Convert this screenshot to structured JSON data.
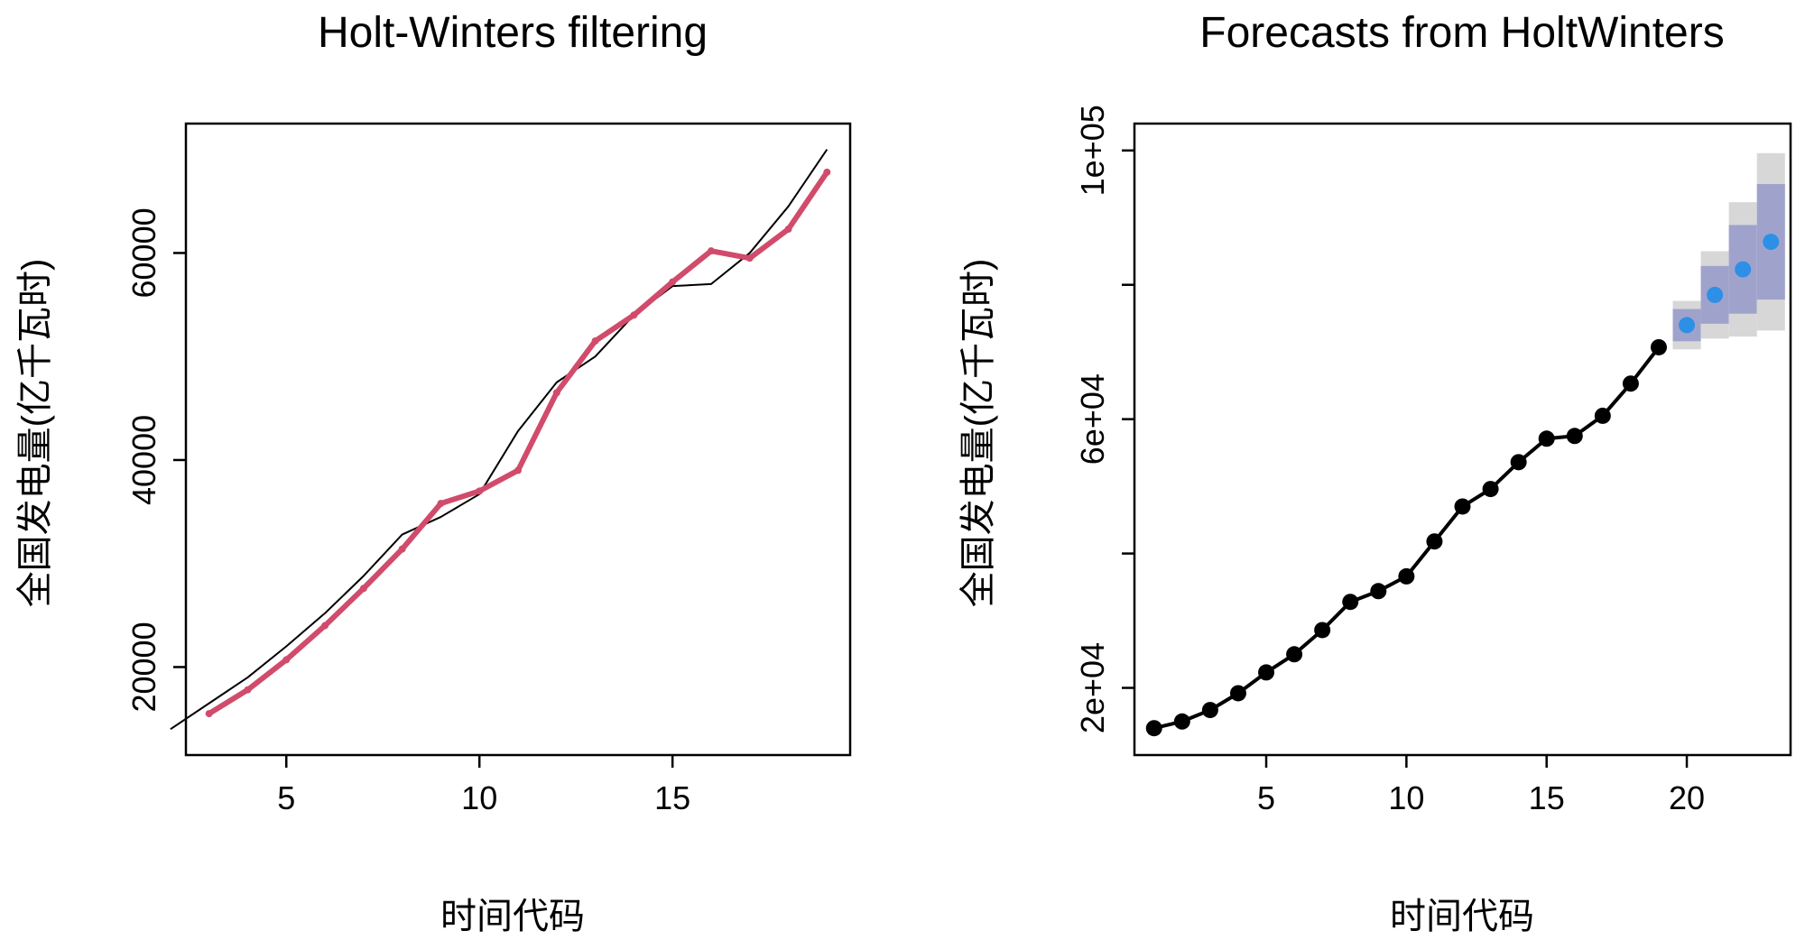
{
  "chart_data": [
    {
      "type": "line",
      "title": "Holt-Winters filtering",
      "xlabel": "时间代码",
      "ylabel": "全国发电量(亿千瓦时)",
      "xlim": [
        2.4,
        19.6
      ],
      "ylim": [
        11500,
        72500
      ],
      "xticks": [
        5,
        10,
        15
      ],
      "yticks": [
        20000,
        40000,
        60000
      ],
      "ytick_labels": [
        "20000",
        "40000",
        "60000"
      ],
      "colors": {
        "observed": "#000000",
        "fitted": "#D14B6B"
      },
      "series": [
        {
          "role": "observed",
          "x": [
            2,
            3,
            4,
            5,
            6,
            7,
            8,
            9,
            10,
            11,
            12,
            13,
            14,
            15,
            16,
            17,
            18,
            19
          ],
          "y": [
            14000,
            16500,
            19000,
            22000,
            25200,
            28800,
            32800,
            34500,
            36700,
            42800,
            47500,
            50000,
            54000,
            56800,
            57000,
            60000,
            64500,
            70000
          ]
        },
        {
          "role": "fitted",
          "x": [
            3,
            4,
            5,
            6,
            7,
            8,
            9,
            10,
            11,
            12,
            13,
            14,
            15,
            16,
            17,
            18,
            19
          ],
          "y": [
            15500,
            17800,
            20700,
            24000,
            27600,
            31400,
            35800,
            37000,
            39000,
            46500,
            51500,
            54000,
            57200,
            60200,
            59500,
            62300,
            67800
          ]
        }
      ]
    },
    {
      "type": "line",
      "title": "Forecasts from HoltWinters",
      "xlabel": "时间代码",
      "ylabel": "全国发电量(亿千瓦时)",
      "xlim": [
        0.3,
        23.7
      ],
      "ylim": [
        10000,
        104000
      ],
      "xticks": [
        5,
        10,
        15,
        20
      ],
      "yticks": [
        20000,
        40000,
        60000,
        80000,
        100000
      ],
      "ytick_labels": [
        "2e+04",
        "",
        "6e+04",
        "",
        "1e+05"
      ],
      "colors": {
        "observed": "#000000",
        "forecast": "#2E8FE6",
        "band_inner": "#9FA3CC",
        "band_outer": "#D7D7D7"
      },
      "series": [
        {
          "role": "observed",
          "x": [
            1,
            2,
            3,
            4,
            5,
            6,
            7,
            8,
            9,
            10,
            11,
            12,
            13,
            14,
            15,
            16,
            17,
            18,
            19
          ],
          "y": [
            14000,
            15000,
            16700,
            19200,
            22300,
            25000,
            28600,
            32800,
            34400,
            36600,
            41800,
            47000,
            49600,
            53600,
            57100,
            57500,
            60500,
            65300,
            70700
          ]
        },
        {
          "role": "forecast",
          "x": [
            20,
            21,
            22,
            23
          ],
          "y": [
            74000,
            78500,
            82300,
            86400
          ],
          "lo80": [
            71600,
            74200,
            75700,
            77800
          ],
          "hi80": [
            76400,
            82800,
            88900,
            95000
          ],
          "lo95": [
            70400,
            72000,
            72300,
            73200
          ],
          "hi95": [
            77600,
            85000,
            92300,
            99600
          ]
        }
      ]
    }
  ]
}
